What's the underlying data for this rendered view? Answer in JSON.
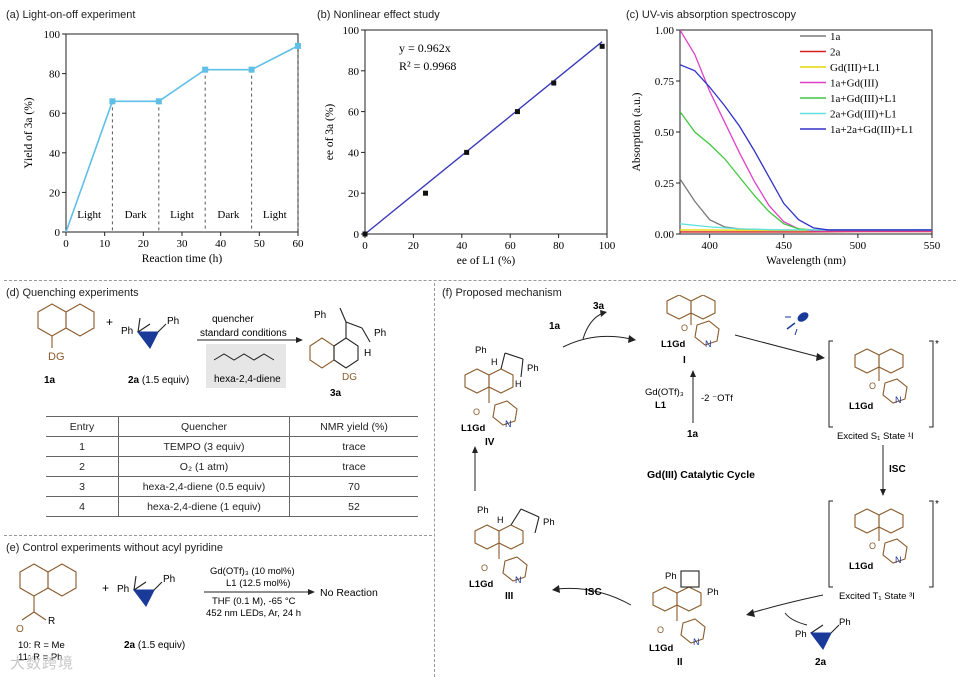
{
  "panels": {
    "a": {
      "title": "(a) Light-on-off experiment"
    },
    "b": {
      "title": "(b) Nonlinear effect study"
    },
    "c": {
      "title": "(c) UV-vis absorption spectroscopy"
    },
    "d": {
      "title": "(d) Quenching experiments"
    },
    "e": {
      "title": "(e) Control experiments without acyl pyridine"
    },
    "f": {
      "title": "(f) Proposed mechanism"
    }
  },
  "chart_data": [
    {
      "type": "line",
      "panel": "a",
      "xlabel": "Reaction time (h)",
      "ylabel": "Yield of 3a (%)",
      "xlim": [
        0,
        60
      ],
      "ylim": [
        0,
        100
      ],
      "xticks": [
        "0",
        "10",
        "20",
        "30",
        "40",
        "50",
        "60"
      ],
      "yticks": [
        "0",
        "20",
        "40",
        "60",
        "80",
        "100"
      ],
      "x": [
        0,
        12,
        24,
        36,
        48,
        60
      ],
      "y": [
        0,
        66,
        66,
        82,
        82,
        94
      ],
      "color": "#5fbfe6",
      "regions": [
        {
          "label": "Light",
          "from": 0,
          "to": 12
        },
        {
          "label": "Dark",
          "from": 12,
          "to": 24
        },
        {
          "label": "Light",
          "from": 24,
          "to": 36
        },
        {
          "label": "Dark",
          "from": 36,
          "to": 48
        },
        {
          "label": "Light",
          "from": 48,
          "to": 60
        }
      ]
    },
    {
      "type": "scatter",
      "panel": "b",
      "xlabel": "ee of L1 (%)",
      "ylabel": "ee of 3a (%)",
      "xlim": [
        0,
        100
      ],
      "ylim": [
        0,
        100
      ],
      "xticks": [
        "0",
        "20",
        "40",
        "60",
        "80",
        "100"
      ],
      "yticks": [
        "0",
        "20",
        "40",
        "60",
        "80",
        "100"
      ],
      "x": [
        0,
        25,
        42,
        63,
        78,
        98
      ],
      "y": [
        0,
        20,
        40,
        60,
        74,
        92
      ],
      "fit": {
        "equation": "y = 0.962x",
        "r2": "R² = 0.9968",
        "slope": 0.962
      },
      "fit_color": "#3a3ab8"
    },
    {
      "type": "line",
      "panel": "c",
      "xlabel": "Wavelength (nm)",
      "ylabel": "Absorption (a.u.)",
      "xlim": [
        380,
        550
      ],
      "ylim": [
        0,
        1.0
      ],
      "xticks": [
        "400",
        "450",
        "500",
        "550"
      ],
      "yticks": [
        "0.00",
        "0.25",
        "0.50",
        "0.75",
        "1.00"
      ],
      "series": [
        {
          "name": "1a",
          "color": "#7a7a7a",
          "x": [
            380,
            390,
            400,
            410,
            420,
            440,
            480,
            550
          ],
          "y": [
            0.27,
            0.16,
            0.07,
            0.035,
            0.025,
            0.02,
            0.018,
            0.015
          ]
        },
        {
          "name": "2a",
          "color": "#d62020",
          "x": [
            380,
            420,
            460,
            500,
            550
          ],
          "y": [
            0.01,
            0.01,
            0.01,
            0.012,
            0.012
          ]
        },
        {
          "name": "Gd(III)+L1",
          "color": "#e6d600",
          "x": [
            380,
            450,
            550
          ],
          "y": [
            0.02,
            0.018,
            0.015
          ]
        },
        {
          "name": "1a+Gd(III)",
          "color": "#e040c8",
          "x": [
            380,
            390,
            400,
            410,
            420,
            430,
            440,
            450,
            460,
            470,
            500,
            550
          ],
          "y": [
            1.0,
            0.88,
            0.7,
            0.55,
            0.4,
            0.26,
            0.14,
            0.06,
            0.025,
            0.015,
            0.015,
            0.015
          ]
        },
        {
          "name": "1a+Gd(III)+L1",
          "color": "#40c840",
          "x": [
            380,
            390,
            400,
            410,
            420,
            430,
            440,
            450,
            460,
            470,
            500,
            550
          ],
          "y": [
            0.6,
            0.5,
            0.44,
            0.37,
            0.28,
            0.19,
            0.11,
            0.05,
            0.025,
            0.02,
            0.02,
            0.02
          ]
        },
        {
          "name": "2a+Gd(III)+L1",
          "color": "#60e0e0",
          "x": [
            380,
            400,
            420,
            450,
            500,
            550
          ],
          "y": [
            0.05,
            0.035,
            0.025,
            0.02,
            0.02,
            0.02
          ]
        },
        {
          "name": "1a+2a+Gd(III)+L1",
          "color": "#3030c8",
          "x": [
            380,
            390,
            400,
            410,
            420,
            430,
            440,
            450,
            460,
            470,
            480,
            500,
            550
          ],
          "y": [
            0.83,
            0.8,
            0.72,
            0.63,
            0.53,
            0.41,
            0.28,
            0.15,
            0.07,
            0.03,
            0.02,
            0.02,
            0.02
          ]
        }
      ]
    }
  ],
  "quenching": {
    "reactant1": "1a",
    "dg_label": "DG",
    "reactant2": "2a",
    "reactant2_equiv": "(1.5 equiv)",
    "ph_label": "Ph",
    "plus": "+",
    "arrow_top": "quencher",
    "arrow_bottom": "standard conditions",
    "diene_label": "hexa-2,4-diene",
    "product": "3a",
    "product_h": "H",
    "table": {
      "headers": [
        "Entry",
        "Quencher",
        "NMR yield (%)"
      ],
      "rows": [
        [
          "1",
          "TEMPO (3 equiv)",
          "trace"
        ],
        [
          "2",
          "O₂ (1 atm)",
          "trace"
        ],
        [
          "3",
          "hexa-2,4-diene (0.5 equiv)",
          "70"
        ],
        [
          "4",
          "hexa-2,4-diene (1 equiv)",
          "52"
        ]
      ]
    }
  },
  "control": {
    "compound_10": "10: R = Me",
    "compound_11": "11: R = Ph",
    "r_label": "R",
    "reactant2": "2a",
    "reactant2_equiv": "(1.5 equiv)",
    "plus": "+",
    "conditions": [
      "Gd(OTf)₃ (10 mol%)",
      "L1 (12.5 mol%)",
      "THF (0.1 M), -65 °C",
      "452 nm LEDs, Ar, 24 h"
    ],
    "result": "No Reaction"
  },
  "mechanism": {
    "cycle_label": "Gd(III) Catalytic Cycle",
    "label_1a_top": "1a",
    "label_3a": "3a",
    "gd_reagent": "Gd(OTf)₃",
    "gd_ligand": "L1",
    "otf_loss": "-2 ⁻OTf",
    "label_1a_bottom": "1a",
    "isc_right": "ISC",
    "isc_bottom": "ISC",
    "label_2a": "2a",
    "gd_fragment": "L1Gd",
    "n_label": "N",
    "o_label": "O",
    "ph_label": "Ph",
    "h_label": "H",
    "intermediates": {
      "I": "I",
      "II": "II",
      "III": "III",
      "IV": "IV"
    },
    "s1_state": "Excited S₁ State ¹I",
    "t1_state": "Excited T₁ State ³I"
  },
  "watermark": "大数跨境"
}
